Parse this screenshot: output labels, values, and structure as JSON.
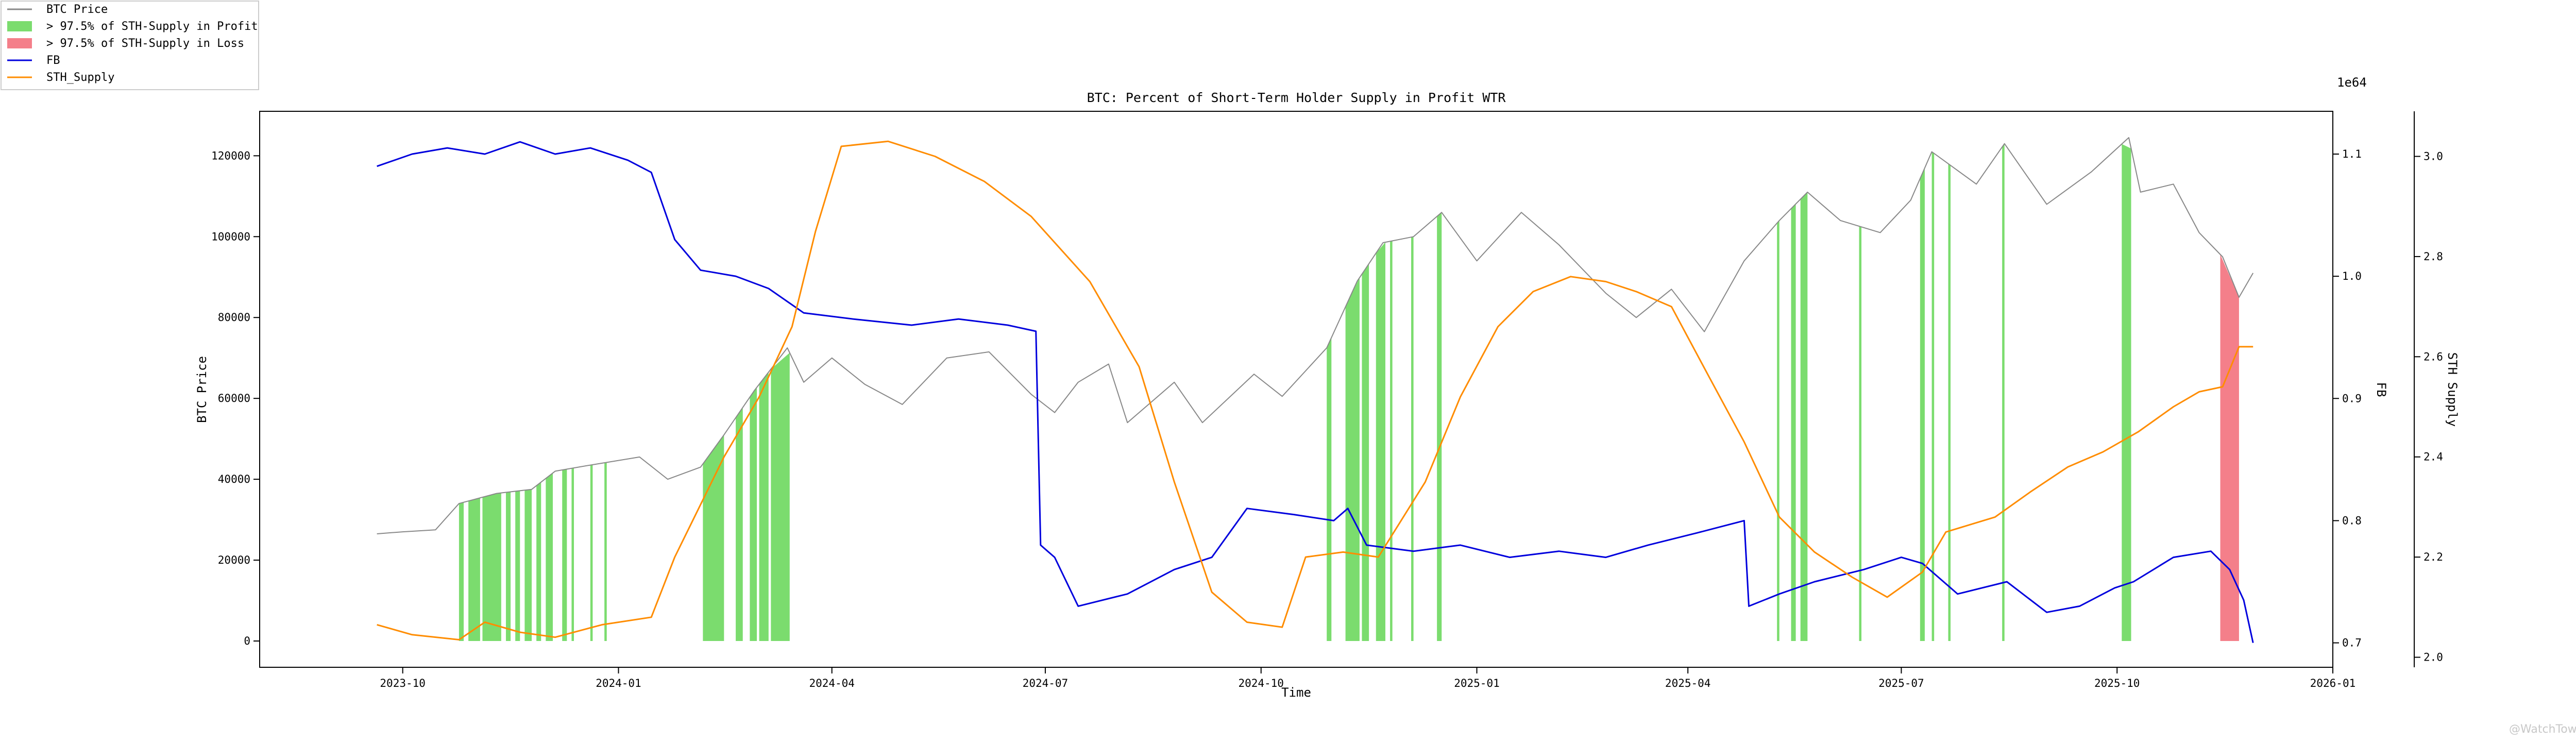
{
  "chart_data": {
    "type": "line",
    "title": "BTC: Percent of Short-Term Holder Supply in Profit WTR",
    "xlabel": "Time",
    "ylabel_left": "BTC Price",
    "ylabel_right1": "FB",
    "ylabel_right2": "STH Supply",
    "right1_offset_label": "1e64",
    "xlim": [
      "2023-08-01",
      "2026-01-01"
    ],
    "x_ticks": [
      "2023-10",
      "2024-01",
      "2024-04",
      "2024-07",
      "2024-10",
      "2025-01",
      "2025-04",
      "2025-07",
      "2025-10",
      "2026-01"
    ],
    "ylim_left": [
      -6500,
      131000
    ],
    "y_ticks_left": [
      0,
      20000,
      40000,
      60000,
      80000,
      100000,
      120000
    ],
    "ylim_right1": [
      0.68,
      1.135
    ],
    "y_ticks_right1": [
      0.7,
      0.8,
      0.9,
      1.0,
      1.1
    ],
    "ylim_right2": [
      1.98,
      3.09
    ],
    "y_ticks_right2": [
      2.0,
      2.2,
      2.4,
      2.6,
      2.8,
      3.0
    ],
    "grid": false,
    "legend_location": "top-left (outside)",
    "legend": [
      {
        "label": "BTC Price",
        "kind": "line",
        "color": "#888888"
      },
      {
        "label": "> 97.5% of STH-Supply in Profit",
        "kind": "fill",
        "color": "#7bdc6e"
      },
      {
        "label": "> 97.5% of STH-Supply in Loss",
        "kind": "fill",
        "color": "#f47f8a"
      },
      {
        "label": "FB",
        "kind": "line",
        "color": "#0000dd"
      },
      {
        "label": "STH_Supply",
        "kind": "line",
        "color": "#ff8c00"
      }
    ],
    "series": [
      {
        "name": "BTC Price",
        "axis": "left",
        "color": "#888888",
        "points": [
          [
            "2023-09-20",
            26500
          ],
          [
            "2023-10-01",
            27000
          ],
          [
            "2023-10-15",
            27500
          ],
          [
            "2023-10-25",
            34000
          ],
          [
            "2023-11-10",
            36500
          ],
          [
            "2023-11-25",
            37500
          ],
          [
            "2023-12-05",
            42000
          ],
          [
            "2023-12-20",
            43500
          ],
          [
            "2024-01-10",
            45500
          ],
          [
            "2024-01-22",
            40000
          ],
          [
            "2024-02-05",
            43000
          ],
          [
            "2024-02-15",
            51000
          ],
          [
            "2024-02-28",
            62000
          ],
          [
            "2024-03-13",
            72500
          ],
          [
            "2024-03-20",
            64000
          ],
          [
            "2024-04-01",
            70000
          ],
          [
            "2024-04-15",
            63500
          ],
          [
            "2024-05-01",
            58500
          ],
          [
            "2024-05-20",
            70000
          ],
          [
            "2024-06-07",
            71500
          ],
          [
            "2024-06-25",
            61000
          ],
          [
            "2024-07-05",
            56500
          ],
          [
            "2024-07-15",
            64000
          ],
          [
            "2024-07-28",
            68500
          ],
          [
            "2024-08-05",
            54000
          ],
          [
            "2024-08-25",
            64000
          ],
          [
            "2024-09-06",
            54000
          ],
          [
            "2024-09-28",
            66000
          ],
          [
            "2024-10-10",
            60500
          ],
          [
            "2024-10-29",
            72500
          ],
          [
            "2024-11-11",
            89000
          ],
          [
            "2024-11-22",
            98500
          ],
          [
            "2024-12-05",
            100000
          ],
          [
            "2024-12-17",
            106000
          ],
          [
            "2025-01-01",
            94000
          ],
          [
            "2025-01-20",
            106000
          ],
          [
            "2025-02-05",
            98000
          ],
          [
            "2025-02-25",
            86000
          ],
          [
            "2025-03-10",
            80000
          ],
          [
            "2025-03-25",
            87000
          ],
          [
            "2025-04-08",
            76500
          ],
          [
            "2025-04-25",
            94000
          ],
          [
            "2025-05-10",
            104000
          ],
          [
            "2025-05-22",
            111000
          ],
          [
            "2025-06-05",
            104000
          ],
          [
            "2025-06-22",
            101000
          ],
          [
            "2025-07-05",
            109000
          ],
          [
            "2025-07-14",
            121000
          ],
          [
            "2025-08-02",
            113000
          ],
          [
            "2025-08-14",
            123000
          ],
          [
            "2025-09-01",
            108000
          ],
          [
            "2025-09-20",
            116000
          ],
          [
            "2025-10-06",
            124500
          ],
          [
            "2025-10-11",
            111000
          ],
          [
            "2025-10-25",
            113000
          ],
          [
            "2025-11-05",
            101000
          ],
          [
            "2025-11-15",
            95000
          ],
          [
            "2025-11-22",
            85000
          ],
          [
            "2025-11-28",
            91000
          ]
        ]
      },
      {
        "name": "FB",
        "axis": "right1",
        "color": "#0000dd",
        "points": [
          [
            "2023-09-20",
            1.09
          ],
          [
            "2023-10-05",
            1.1
          ],
          [
            "2023-10-20",
            1.105
          ],
          [
            "2023-11-05",
            1.1
          ],
          [
            "2023-11-20",
            1.11
          ],
          [
            "2023-12-05",
            1.1
          ],
          [
            "2023-12-20",
            1.105
          ],
          [
            "2024-01-05",
            1.095
          ],
          [
            "2024-01-15",
            1.085
          ],
          [
            "2024-01-25",
            1.03
          ],
          [
            "2024-02-05",
            1.005
          ],
          [
            "2024-02-20",
            1.0
          ],
          [
            "2024-03-05",
            0.99
          ],
          [
            "2024-03-20",
            0.97
          ],
          [
            "2024-04-10",
            0.965
          ],
          [
            "2024-05-05",
            0.96
          ],
          [
            "2024-05-25",
            0.965
          ],
          [
            "2024-06-15",
            0.96
          ],
          [
            "2024-06-27",
            0.955
          ],
          [
            "2024-06-29",
            0.78
          ],
          [
            "2024-07-05",
            0.77
          ],
          [
            "2024-07-15",
            0.73
          ],
          [
            "2024-08-05",
            0.74
          ],
          [
            "2024-08-25",
            0.76
          ],
          [
            "2024-09-10",
            0.77
          ],
          [
            "2024-09-25",
            0.81
          ],
          [
            "2024-10-15",
            0.805
          ],
          [
            "2024-11-01",
            0.8
          ],
          [
            "2024-11-07",
            0.81
          ],
          [
            "2024-11-15",
            0.78
          ],
          [
            "2024-12-05",
            0.775
          ],
          [
            "2024-12-25",
            0.78
          ],
          [
            "2025-01-15",
            0.77
          ],
          [
            "2025-02-05",
            0.775
          ],
          [
            "2025-02-25",
            0.77
          ],
          [
            "2025-03-15",
            0.78
          ],
          [
            "2025-04-05",
            0.79
          ],
          [
            "2025-04-25",
            0.8
          ],
          [
            "2025-04-27",
            0.73
          ],
          [
            "2025-05-10",
            0.74
          ],
          [
            "2025-05-25",
            0.75
          ],
          [
            "2025-06-15",
            0.76
          ],
          [
            "2025-07-01",
            0.77
          ],
          [
            "2025-07-10",
            0.765
          ],
          [
            "2025-07-25",
            0.74
          ],
          [
            "2025-08-15",
            0.75
          ],
          [
            "2025-09-01",
            0.725
          ],
          [
            "2025-09-15",
            0.73
          ],
          [
            "2025-09-30",
            0.745
          ],
          [
            "2025-10-08",
            0.75
          ],
          [
            "2025-10-25",
            0.77
          ],
          [
            "2025-11-10",
            0.775
          ],
          [
            "2025-11-18",
            0.76
          ],
          [
            "2025-11-24",
            0.735
          ],
          [
            "2025-11-28",
            0.7
          ]
        ]
      },
      {
        "name": "STH_Supply",
        "axis": "right2",
        "color": "#ff8c00",
        "points": [
          [
            "2023-09-20",
            2.065
          ],
          [
            "2023-10-05",
            2.045
          ],
          [
            "2023-10-25",
            2.035
          ],
          [
            "2023-11-05",
            2.07
          ],
          [
            "2023-11-20",
            2.05
          ],
          [
            "2023-12-05",
            2.04
          ],
          [
            "2023-12-25",
            2.065
          ],
          [
            "2024-01-15",
            2.08
          ],
          [
            "2024-01-25",
            2.2
          ],
          [
            "2024-02-15",
            2.4
          ],
          [
            "2024-03-01",
            2.52
          ],
          [
            "2024-03-15",
            2.66
          ],
          [
            "2024-03-25",
            2.85
          ],
          [
            "2024-04-05",
            3.02
          ],
          [
            "2024-04-25",
            3.03
          ],
          [
            "2024-05-15",
            3.0
          ],
          [
            "2024-06-05",
            2.95
          ],
          [
            "2024-06-25",
            2.88
          ],
          [
            "2024-07-20",
            2.75
          ],
          [
            "2024-08-10",
            2.58
          ],
          [
            "2024-08-25",
            2.35
          ],
          [
            "2024-09-10",
            2.13
          ],
          [
            "2024-09-25",
            2.07
          ],
          [
            "2024-10-10",
            2.06
          ],
          [
            "2024-10-20",
            2.2
          ],
          [
            "2024-11-05",
            2.21
          ],
          [
            "2024-11-20",
            2.2
          ],
          [
            "2024-12-10",
            2.35
          ],
          [
            "2024-12-25",
            2.52
          ],
          [
            "2025-01-10",
            2.66
          ],
          [
            "2025-01-25",
            2.73
          ],
          [
            "2025-02-10",
            2.76
          ],
          [
            "2025-02-25",
            2.75
          ],
          [
            "2025-03-10",
            2.73
          ],
          [
            "2025-03-25",
            2.7
          ],
          [
            "2025-04-10",
            2.56
          ],
          [
            "2025-04-25",
            2.43
          ],
          [
            "2025-05-10",
            2.28
          ],
          [
            "2025-05-25",
            2.21
          ],
          [
            "2025-06-10",
            2.16
          ],
          [
            "2025-06-25",
            2.12
          ],
          [
            "2025-07-10",
            2.17
          ],
          [
            "2025-07-20",
            2.25
          ],
          [
            "2025-08-10",
            2.28
          ],
          [
            "2025-08-25",
            2.33
          ],
          [
            "2025-09-10",
            2.38
          ],
          [
            "2025-09-25",
            2.41
          ],
          [
            "2025-10-10",
            2.45
          ],
          [
            "2025-10-25",
            2.5
          ],
          [
            "2025-11-05",
            2.53
          ],
          [
            "2025-11-15",
            2.54
          ],
          [
            "2025-11-22",
            2.62
          ],
          [
            "2025-11-28",
            2.62
          ]
        ]
      }
    ],
    "profit_bands": [
      [
        "2023-10-25",
        "2023-10-27"
      ],
      [
        "2023-10-29",
        "2023-11-03"
      ],
      [
        "2023-11-04",
        "2023-11-12"
      ],
      [
        "2023-11-14",
        "2023-11-16"
      ],
      [
        "2023-11-18",
        "2023-11-20"
      ],
      [
        "2023-11-22",
        "2023-11-25"
      ],
      [
        "2023-11-27",
        "2023-11-29"
      ],
      [
        "2023-12-01",
        "2023-12-04"
      ],
      [
        "2023-12-08",
        "2023-12-10"
      ],
      [
        "2023-12-12",
        "2023-12-13"
      ],
      [
        "2023-12-20",
        "2023-12-21"
      ],
      [
        "2023-12-26",
        "2023-12-27"
      ],
      [
        "2024-02-06",
        "2024-02-15"
      ],
      [
        "2024-02-20",
        "2024-02-23"
      ],
      [
        "2024-02-26",
        "2024-02-29"
      ],
      [
        "2024-03-01",
        "2024-03-05"
      ],
      [
        "2024-03-06",
        "2024-03-14"
      ],
      [
        "2024-10-29",
        "2024-10-31"
      ],
      [
        "2024-11-06",
        "2024-11-12"
      ],
      [
        "2024-11-13",
        "2024-11-16"
      ],
      [
        "2024-11-19",
        "2024-11-23"
      ],
      [
        "2024-11-25",
        "2024-11-26"
      ],
      [
        "2024-12-04",
        "2024-12-05"
      ],
      [
        "2024-12-15",
        "2024-12-17"
      ],
      [
        "2025-05-09",
        "2025-05-10"
      ],
      [
        "2025-05-15",
        "2025-05-17"
      ],
      [
        "2025-05-19",
        "2025-05-22"
      ],
      [
        "2025-06-13",
        "2025-06-14"
      ],
      [
        "2025-07-09",
        "2025-07-11"
      ],
      [
        "2025-07-14",
        "2025-07-15"
      ],
      [
        "2025-07-21",
        "2025-07-22"
      ],
      [
        "2025-08-13",
        "2025-08-14"
      ],
      [
        "2025-10-03",
        "2025-10-07"
      ]
    ],
    "loss_bands": [
      [
        "2025-11-14",
        "2025-11-22"
      ]
    ]
  },
  "watermark": "@WatchTower"
}
